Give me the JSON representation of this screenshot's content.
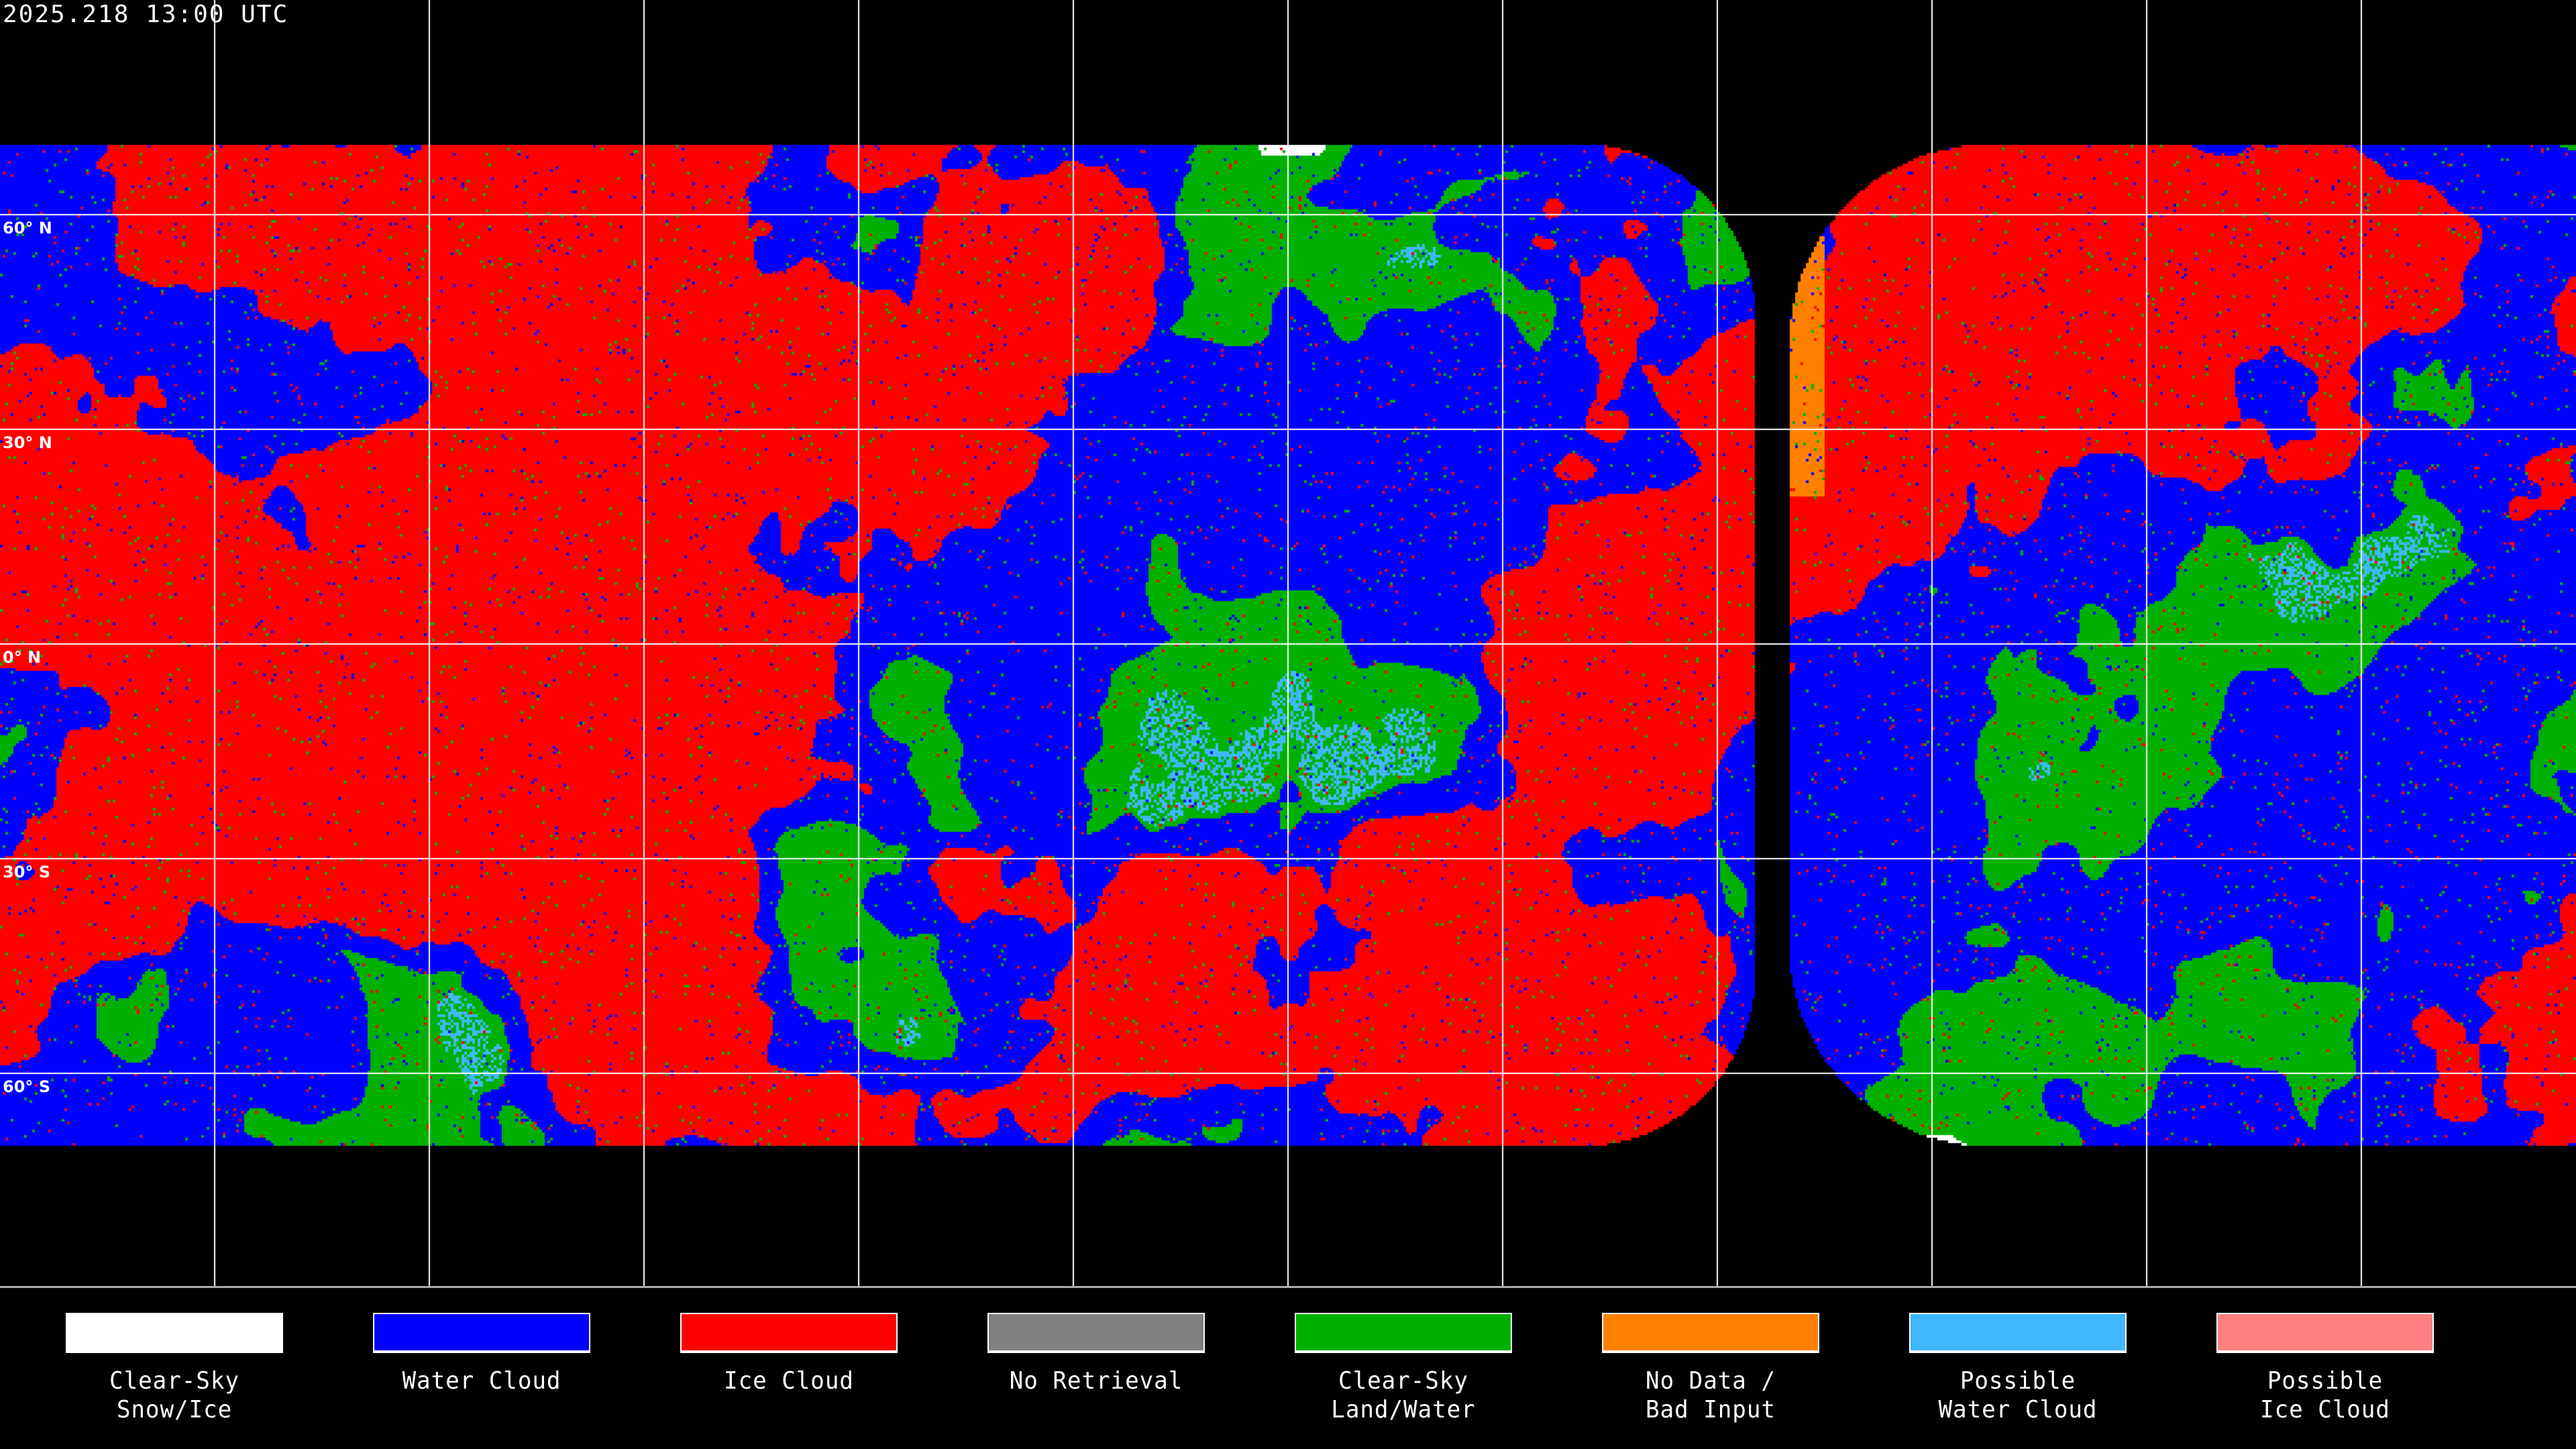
{
  "title": "2025.218 13:00 UTC",
  "latitude_labels": [
    "60° N",
    "30° N",
    "0° N",
    "30° S",
    "60° S"
  ],
  "legend": [
    {
      "line1": "Clear-Sky",
      "line2": "Snow/Ice",
      "color": "#ffffff"
    },
    {
      "line1": "Water Cloud",
      "line2": "",
      "color": "#0000ff"
    },
    {
      "line1": "Ice Cloud",
      "line2": "",
      "color": "#ff0000"
    },
    {
      "line1": "No Retrieval",
      "line2": "",
      "color": "#808080"
    },
    {
      "line1": "Clear-Sky",
      "line2": "Land/Water",
      "color": "#00b000"
    },
    {
      "line1": "No Data /",
      "line2": "Bad Input",
      "color": "#ff8000"
    },
    {
      "line1": "Possible",
      "line2": "Water Cloud",
      "color": "#40b8ff"
    },
    {
      "line1": "Possible",
      "line2": "Ice Cloud",
      "color": "#ff8080"
    }
  ]
}
